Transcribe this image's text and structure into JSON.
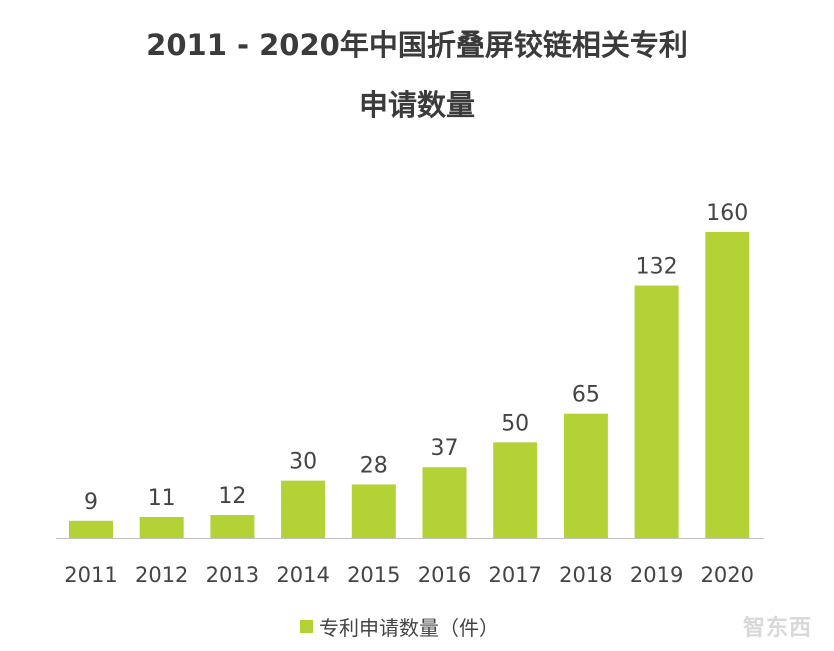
{
  "chart_data": {
    "type": "bar",
    "title": "2011 - 2020年中国折叠屏铰链相关专利",
    "subtitle": "申请数量",
    "categories": [
      "2011",
      "2012",
      "2013",
      "2014",
      "2015",
      "2016",
      "2017",
      "2018",
      "2019",
      "2020"
    ],
    "series": [
      {
        "name": "专利申请数量（件）",
        "values": [
          9,
          11,
          12,
          30,
          28,
          37,
          50,
          65,
          132,
          160
        ],
        "color": "#b2d235"
      }
    ],
    "ylim": [
      0,
      160
    ],
    "grid": false,
    "legend": "bottom",
    "data_labels": true
  },
  "watermark": "智东西"
}
